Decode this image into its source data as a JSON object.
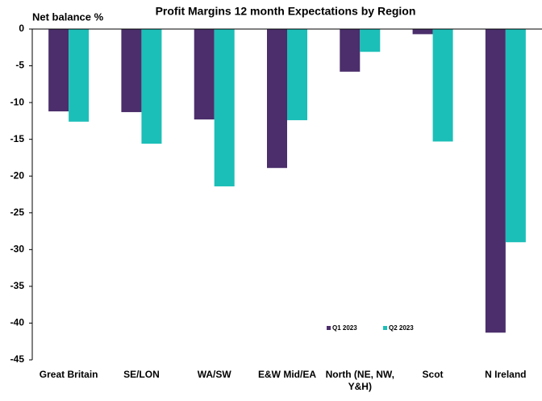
{
  "chart_data": {
    "type": "bar",
    "title": "Profit Margins 12 month Expectations by Region",
    "y_label": "Net balance %",
    "categories": [
      "Great Britain",
      "SE/LON",
      "WA/SW",
      "E&W Mid/EA",
      "North (NE, NW, Y&H)",
      "Scot",
      "N Ireland"
    ],
    "series": [
      {
        "name": "Q1 2023",
        "color": "#4b2e6b",
        "values": [
          -11.2,
          -11.3,
          -12.3,
          -18.9,
          -5.8,
          -0.7,
          -41.3
        ]
      },
      {
        "name": "Q2 2023",
        "color": "#1bbfb8",
        "values": [
          -12.6,
          -15.6,
          -21.4,
          -12.4,
          -3.1,
          -15.3,
          -29.0
        ]
      }
    ],
    "ylim": [
      -45,
      0
    ],
    "yticks": [
      0,
      -5,
      -10,
      -15,
      -20,
      -25,
      -30,
      -35,
      -40,
      -45
    ],
    "grid": false
  }
}
